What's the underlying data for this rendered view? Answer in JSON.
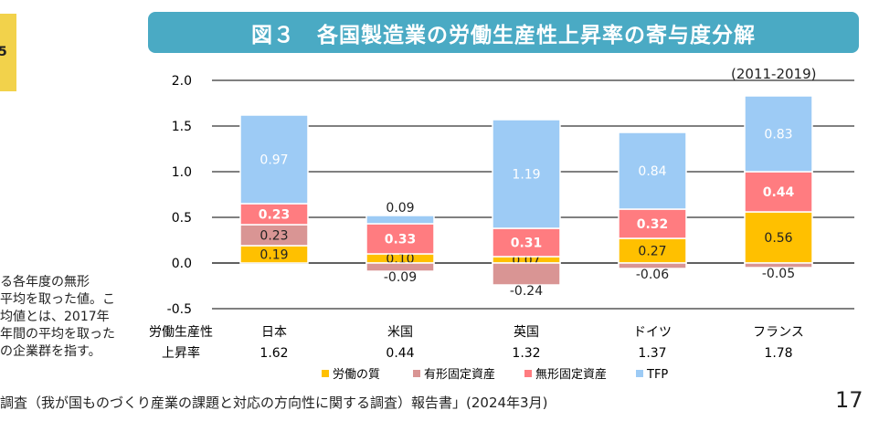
{
  "side_badge": "5",
  "title": "図３　各国製造業の労働生産性上昇率の寄与度分解",
  "period": "(2011-2019)",
  "note_lines": [
    "る各年度の無形",
    "平均を取った値。こ",
    "均値とは、2017年",
    "年間の平均を取った",
    "の企業群を指す。"
  ],
  "source": "調査（我が国ものづくり産業の課題と対応の方向性に関する調査）報告書」(2024年3月)",
  "page_number": "17",
  "colors": {
    "header": "#4AAAC4",
    "labor": "#FFC000",
    "tangible": "#D99594",
    "intangible": "#FF7C80",
    "tfp": "#9DCBF5"
  },
  "chart_data": {
    "type": "bar",
    "stacked": true,
    "categories": [
      "日本",
      "米国",
      "英国",
      "ドイツ",
      "フランス"
    ],
    "row_label": "労働生産性\n上昇率",
    "totals": [
      "1.62",
      "0.44",
      "1.32",
      "1.37",
      "1.78"
    ],
    "series": [
      {
        "name": "労働の質",
        "values": [
          0.19,
          0.1,
          0.07,
          0.27,
          0.56
        ]
      },
      {
        "name": "有形固定資産",
        "values": [
          0.23,
          -0.09,
          -0.24,
          -0.06,
          -0.05
        ]
      },
      {
        "name": "無形固定資産",
        "values": [
          0.23,
          0.33,
          0.31,
          0.32,
          0.44
        ]
      },
      {
        "name": "TFP",
        "values": [
          0.97,
          0.09,
          1.19,
          0.84,
          0.83
        ]
      }
    ],
    "yticks": [
      "2.0",
      "1.5",
      "1.0",
      "0.5",
      "0.0",
      "-0.5"
    ],
    "ylim": [
      -0.5,
      2.0
    ],
    "grid": true,
    "legend": "bottom"
  }
}
